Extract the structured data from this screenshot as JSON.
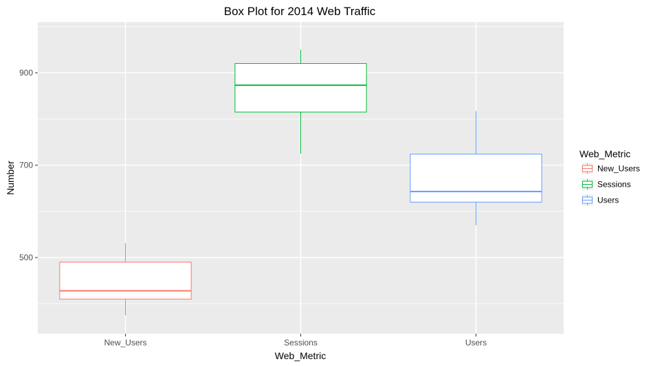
{
  "chart_data": {
    "type": "boxplot",
    "title": "Box Plot for 2014 Web Traffic",
    "xlabel": "Web_Metric",
    "ylabel": "Number",
    "ylim": [
      335,
      1010
    ],
    "yticks": [
      500,
      700,
      900
    ],
    "categories": [
      "New_Users",
      "Sessions",
      "Users"
    ],
    "series": [
      {
        "name": "New_Users",
        "color": "#F8766D",
        "whisker_low": 375,
        "q1": 410,
        "median": 428,
        "q3": 490,
        "whisker_high": 531
      },
      {
        "name": "Sessions",
        "color": "#00BA38",
        "whisker_low": 725,
        "q1": 815,
        "median": 873,
        "q3": 920,
        "whisker_high": 950
      },
      {
        "name": "Users",
        "color": "#619CFF",
        "whisker_low": 570,
        "q1": 620,
        "median": 643,
        "q3": 724,
        "whisker_high": 817
      }
    ],
    "legend": {
      "title": "Web_Metric",
      "position": "right",
      "items": [
        "New_Users",
        "Sessions",
        "Users"
      ]
    },
    "grid": true,
    "panel_background": "#EBEBEB",
    "grid_color": "#FFFFFF"
  }
}
